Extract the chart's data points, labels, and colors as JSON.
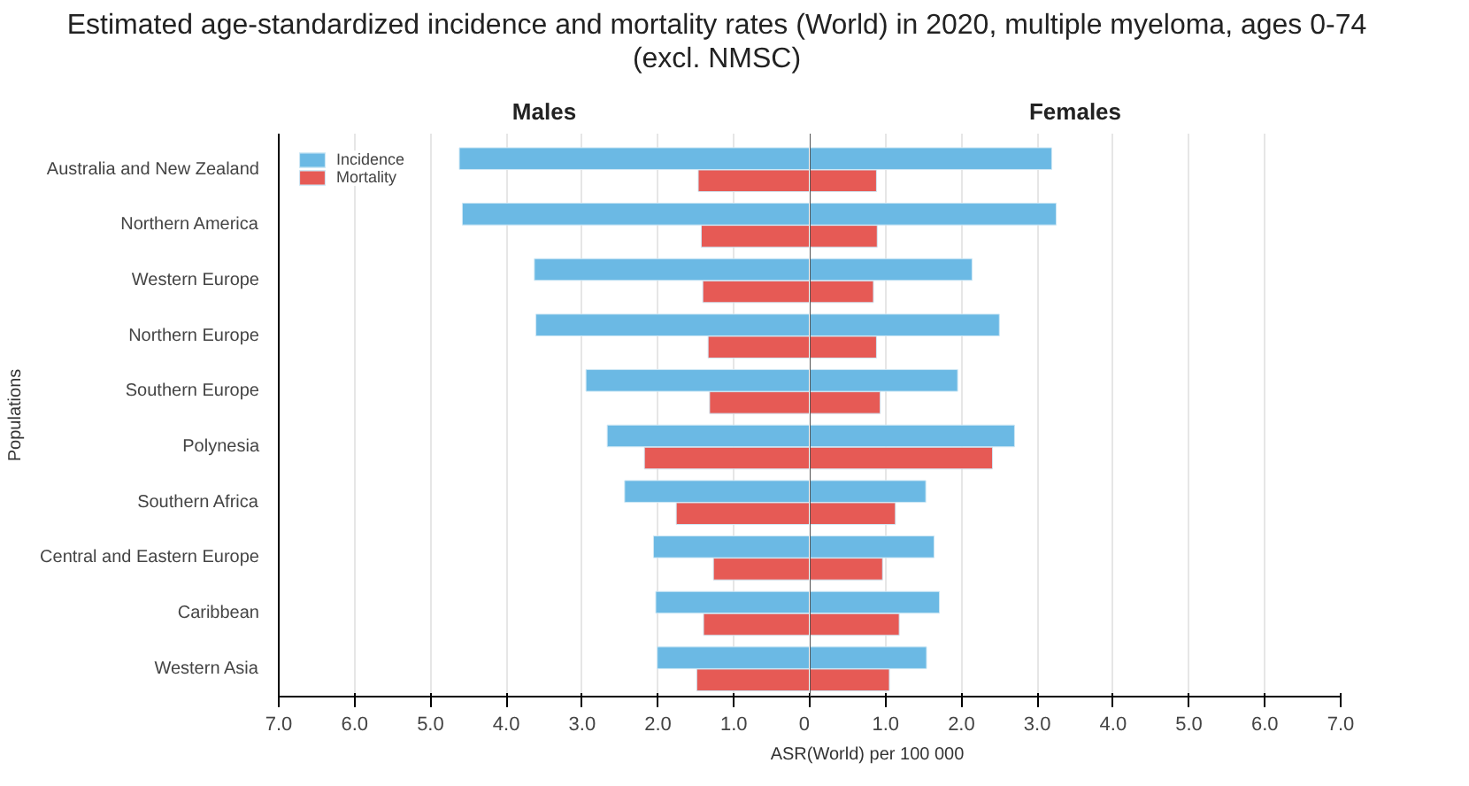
{
  "chart_data": [
    {
      "type": "bar",
      "orientation": "horizontal",
      "title": "Estimated age-standardized incidence and mortality rates (World) in 2020, multiple myeloma, ages 0-74\n(excl. NMSC)",
      "subtitle": "Males",
      "xlabel": "ASR(World) per 100 000",
      "ylabel": "Populations",
      "categories": [
        "Australia and New Zealand",
        "Northern America",
        "Western Europe",
        "Northern Europe",
        "Southern Europe",
        "Polynesia",
        "Southern Africa",
        "Central and Eastern Europe",
        "Caribbean",
        "Western Asia"
      ],
      "series": [
        {
          "name": "Incidence",
          "color": "#6bb9e4",
          "values": [
            4.62,
            4.58,
            3.63,
            3.61,
            2.95,
            2.67,
            2.44,
            2.06,
            2.03,
            2.01
          ]
        },
        {
          "name": "Mortality",
          "color": "#e65a55",
          "values": [
            1.47,
            1.43,
            1.41,
            1.34,
            1.32,
            2.18,
            1.76,
            1.27,
            1.4,
            1.49
          ]
        }
      ],
      "xlim": [
        7,
        0
      ],
      "xticks": [
        {
          "value": 7,
          "label": "7.0"
        },
        {
          "value": 6,
          "label": "6.0"
        },
        {
          "value": 5,
          "label": "5.0"
        },
        {
          "value": 4,
          "label": "4.0"
        },
        {
          "value": 3,
          "label": "3.0"
        },
        {
          "value": 2,
          "label": "2.0"
        },
        {
          "value": 1,
          "label": "1.0"
        },
        0
      ],
      "grid": "x",
      "legend": "top left"
    },
    {
      "type": "bar",
      "orientation": "horizontal",
      "subtitle": "Females",
      "series": [
        {
          "color": "#6bb9e4",
          "values": [
            3.19,
            3.25,
            2.14,
            2.5,
            1.95,
            2.7,
            1.53,
            1.64,
            1.71,
            1.54
          ]
        },
        {
          "color": "#e65a55",
          "values": [
            0.88,
            0.89,
            0.84,
            0.88,
            0.93,
            2.41,
            1.13,
            0.96,
            1.18,
            1.05
          ]
        }
      ],
      "xlim": [
        0,
        7
      ],
      "xticks": [
        {
          "value": 0,
          "label": null
        },
        {
          "value": 1,
          "label": "1.0"
        },
        {
          "value": 2,
          "label": "2.0"
        },
        {
          "value": 3,
          "label": "3.0"
        },
        {
          "value": 4,
          "label": "4.0"
        },
        {
          "value": 5,
          "label": "5.0"
        },
        {
          "value": 6,
          "label": "6.0"
        },
        {
          "value": 7,
          "label": "7.0"
        }
      ],
      "grid": "x",
      "tick_labels": "x"
    }
  ]
}
